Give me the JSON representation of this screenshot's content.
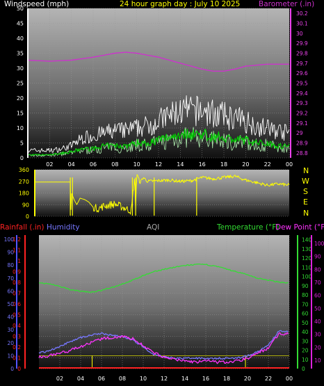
{
  "header": {
    "windspeed_label": "Windspeed (mph)",
    "title": "24 hour graph day : July 10 2025",
    "barometer_label": "Barometer (.in)"
  },
  "direction_letters": [
    "N",
    "W",
    "S",
    "E",
    "N"
  ],
  "lower_header": {
    "rainfall_label": "Rainfall (.in)",
    "humidity_label": "Humidity",
    "aqi_label": "AQI",
    "temperature_label": "Temperature (°F)",
    "dewpoint_label": "Dew Point (°F)"
  },
  "colors": {
    "windspeed": "#ffffff",
    "wind_avg": "#00cc00",
    "wind_gust_light": "#b0f0b0",
    "barometer": "#cc33cc",
    "direction": "#ffff00",
    "rainfall": "#ff2222",
    "humidity": "#7777ff",
    "temperature": "#33dd33",
    "dewpoint": "#ff33ff",
    "aqi": "#aaaaaa",
    "dew_axis": "#dd22dd",
    "barometer_axis": "#ee44ee"
  },
  "chart_data": [
    {
      "type": "line",
      "title": "24 hour graph day : July 10 2025",
      "ylabel": "Windspeed (mph)",
      "y2label": "Barometer (.in)",
      "x_ticks": [
        "02",
        "04",
        "06",
        "08",
        "10",
        "12",
        "14",
        "16",
        "18",
        "20",
        "22",
        "00"
      ],
      "ylim": [
        0,
        50
      ],
      "y_ticks": [
        "0",
        "5",
        "10",
        "15",
        "20",
        "25",
        "30",
        "35",
        "40",
        "45",
        "50"
      ],
      "y2lim": [
        28.75,
        30.25
      ],
      "y2_ticks": [
        "28.8",
        "28.9",
        "29",
        "29.1",
        "29.2",
        "29.3",
        "29.4",
        "29.5",
        "29.6",
        "29.7",
        "29.8",
        "29.9",
        "30",
        "30.1",
        "30.2"
      ],
      "series": [
        {
          "name": "Barometer (.in)",
          "x": [
            0,
            2,
            4,
            6,
            8,
            9,
            10,
            12,
            14,
            16,
            17,
            18,
            19,
            20,
            22,
            24
          ],
          "values": [
            29.73,
            29.72,
            29.73,
            29.76,
            29.8,
            29.81,
            29.8,
            29.76,
            29.7,
            29.64,
            29.62,
            29.62,
            29.64,
            29.67,
            29.69,
            29.69
          ]
        },
        {
          "name": "Windspeed (mph)",
          "x": [
            0,
            2,
            3,
            4,
            5,
            6,
            7,
            8,
            9,
            10,
            11,
            12,
            13,
            14,
            15,
            16,
            17,
            18,
            19,
            20,
            21,
            22,
            23,
            24
          ],
          "values": [
            1,
            1,
            1.5,
            2,
            3,
            3,
            4,
            4,
            4,
            5,
            5,
            6,
            7,
            8,
            8,
            8,
            7,
            7,
            6,
            6,
            5,
            5,
            4,
            4
          ]
        },
        {
          "x": [
            0,
            2,
            3,
            4,
            5,
            6,
            7,
            8,
            9,
            10,
            11,
            12,
            13,
            14,
            15,
            16,
            17,
            18,
            19,
            20,
            21,
            22,
            23,
            24
          ],
          "values": [
            3,
            3,
            3.5,
            5,
            8,
            9,
            10,
            11,
            11,
            12,
            13,
            15,
            17,
            19,
            19,
            19,
            18,
            17,
            16,
            15,
            13,
            12,
            11,
            10
          ]
        }
      ]
    },
    {
      "type": "line",
      "ylabel": "Wind direction",
      "ylim": [
        0,
        360
      ],
      "y_ticks": [
        "0",
        "90",
        "180",
        "270",
        "360"
      ],
      "series": [
        {
          "x": [
            0,
            3.9,
            3.95,
            4.0,
            4.3,
            4.5,
            4.8,
            5.2,
            5.6,
            6.0,
            6.5,
            7.0,
            8.0,
            9.0,
            9.5,
            9.8,
            9.9,
            10.0,
            10.3,
            10.6,
            11,
            12,
            13,
            14,
            15,
            16,
            17,
            18,
            19,
            20,
            21,
            22,
            23,
            24
          ],
          "values": [
            265,
            265,
            20,
            180,
            120,
            90,
            140,
            130,
            110,
            70,
            60,
            80,
            95,
            60,
            40,
            300,
            80,
            330,
            260,
            300,
            270,
            275,
            280,
            270,
            275,
            300,
            290,
            300,
            310,
            280,
            260,
            240,
            250,
            240
          ]
        }
      ]
    },
    {
      "type": "line",
      "ylabel": "Rainfall (.in)",
      "y2label": "Temperature (°F)",
      "y3label": "Dew Point (°F)",
      "ylim": [
        0,
        1.2
      ],
      "y_ticks": [
        "0",
        "0.1",
        "0.2",
        "0.3",
        "0.4",
        "0.5",
        "0.6",
        "0.7",
        "0.8",
        "0.9",
        "1",
        "1.1",
        "1.2"
      ],
      "humidity_ticks": [
        "0",
        "10",
        "20",
        "30",
        "40",
        "50",
        "60",
        "70",
        "80",
        "90",
        "100"
      ],
      "temp_lim": [
        0,
        145
      ],
      "temp_ticks": [
        "0",
        "10",
        "20",
        "30",
        "40",
        "50",
        "60",
        "70",
        "80",
        "90",
        "100",
        "110",
        "120",
        "130",
        "140"
      ],
      "dew_ticks": [
        "10",
        "20",
        "30",
        "40",
        "50",
        "60",
        "70",
        "80",
        "90",
        "100"
      ],
      "x_ticks": [
        "02",
        "04",
        "06",
        "08",
        "10",
        "12",
        "14",
        "16",
        "18",
        "20",
        "22",
        "00"
      ],
      "series": [
        {
          "name": "Temperature (°F)",
          "x": [
            0,
            1,
            2,
            3,
            4,
            5,
            6,
            7,
            8,
            9,
            10,
            11,
            12,
            13,
            14,
            15,
            16,
            17,
            18,
            19,
            20,
            21,
            22,
            23,
            24
          ],
          "values": [
            93,
            92,
            89,
            86,
            84,
            83,
            85,
            88,
            92,
            96,
            101,
            105,
            108,
            110,
            112,
            113,
            113,
            111,
            108,
            105,
            102,
            98,
            96,
            94,
            93
          ]
        },
        {
          "name": "Humidity",
          "x": [
            0,
            1,
            2,
            3,
            4,
            5,
            6,
            7,
            8,
            9,
            10,
            11,
            12,
            13,
            14,
            15,
            16,
            17,
            18,
            19,
            20,
            21,
            22,
            23,
            24
          ],
          "values": [
            12,
            14,
            17,
            21,
            24,
            26,
            27,
            26,
            25,
            22,
            17,
            11,
            9,
            8,
            8,
            8,
            8,
            8,
            8,
            8,
            10,
            13,
            18,
            29,
            28
          ]
        },
        {
          "name": "Dew Point (°F)",
          "x": [
            0,
            1,
            2,
            3,
            4,
            5,
            6,
            7,
            8,
            9,
            10,
            11,
            12,
            13,
            14,
            15,
            16,
            17,
            18,
            19,
            20,
            21,
            22,
            23,
            24
          ],
          "values": [
            9,
            10,
            12,
            14,
            17,
            20,
            23,
            24,
            25,
            23,
            18,
            12,
            9,
            7,
            6,
            5,
            6,
            5,
            5,
            6,
            8,
            12,
            16,
            27,
            27
          ]
        },
        {
          "name": "Rainfall (.in)",
          "x": [
            0,
            24
          ],
          "values": [
            0,
            0
          ]
        }
      ]
    }
  ]
}
